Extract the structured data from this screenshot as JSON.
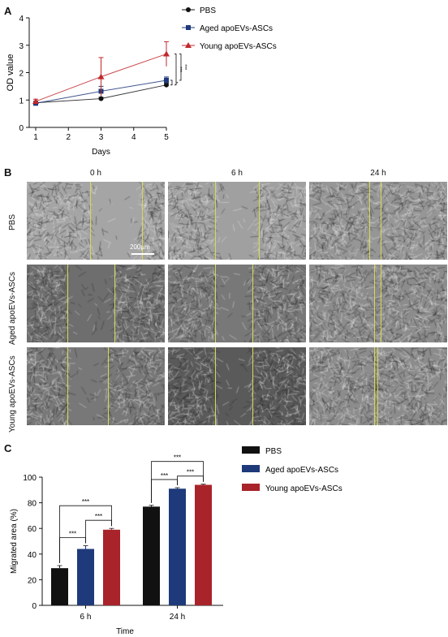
{
  "panels": {
    "a": "A",
    "b": "B",
    "c": "C"
  },
  "chart_a": {
    "type": "line",
    "x": [
      1,
      3,
      5
    ],
    "xlabel": "Days",
    "ylabel": "OD value",
    "xticks": [
      "1",
      "2",
      "3",
      "4",
      "5"
    ],
    "yticks": [
      "0",
      "1",
      "2",
      "3",
      "4"
    ],
    "xlim": [
      1,
      5
    ],
    "ylim": [
      0,
      4
    ],
    "series": [
      {
        "name": "PBS",
        "values": [
          0.9,
          1.05,
          1.55
        ],
        "errors": [
          0.05,
          0.05,
          0.06
        ],
        "color": "#111111",
        "marker": "circle"
      },
      {
        "name": "Aged apoEVs-ASCs",
        "values": [
          0.88,
          1.32,
          1.72
        ],
        "errors": [
          0.06,
          0.18,
          0.12
        ],
        "color": "#1f3a7a",
        "marker": "square"
      },
      {
        "name": "Young apoEVs-ASCs",
        "values": [
          0.95,
          1.85,
          2.68
        ],
        "errors": [
          0.08,
          0.7,
          0.45
        ],
        "color": "#c0282c",
        "marker": "triangle"
      }
    ],
    "significance": [
      "***",
      "*",
      "***"
    ],
    "legend_position": "right"
  },
  "panel_b": {
    "columns": [
      "0 h",
      "6 h",
      "24 h"
    ],
    "rows": [
      "PBS",
      "Aged apoEVs-ASCs",
      "Young apoEVs-ASCs"
    ],
    "scale_label": "200μm"
  },
  "chart_c": {
    "type": "bar",
    "categories": [
      "6 h",
      "24 h"
    ],
    "xlabel": "Time",
    "ylabel": "Migrated area (%)",
    "ylim": [
      0,
      100
    ],
    "yticks": [
      "0",
      "20",
      "40",
      "60",
      "80",
      "100"
    ],
    "series": [
      {
        "name": "PBS",
        "values": [
          29,
          77
        ],
        "errors": [
          2,
          1
        ],
        "color": "#111111"
      },
      {
        "name": "Aged apoEVs-ASCs",
        "values": [
          44,
          91
        ],
        "errors": [
          2.5,
          0.8
        ],
        "color": "#1f3a7a"
      },
      {
        "name": "Young apoEVs-ASCs",
        "values": [
          59,
          94
        ],
        "errors": [
          1,
          0.5
        ],
        "color": "#a8242a"
      }
    ],
    "significance": [
      "***",
      "***",
      "***",
      "***",
      "***",
      "***"
    ],
    "legend_position": "top-right"
  }
}
